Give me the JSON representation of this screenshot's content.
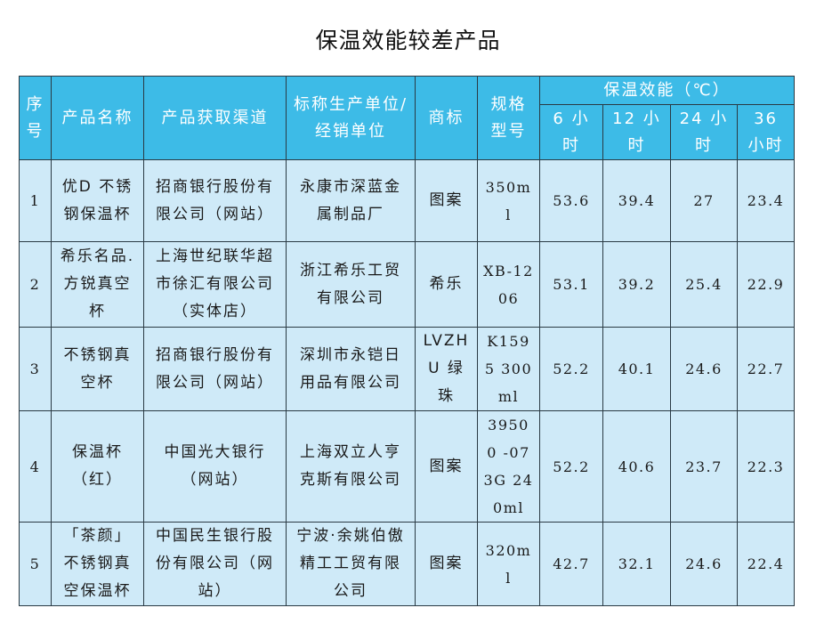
{
  "title": "保温效能较差产品",
  "table": {
    "headers": {
      "seq": "序号",
      "name": "产品名称",
      "channel": "产品获取渠道",
      "unit": "标称生产单位/经销单位",
      "brand": "商标",
      "spec": "规格型号",
      "performance": "保温效能（℃）",
      "h6": "6 小时",
      "h12": "12 小时",
      "h24": "24 小时",
      "h36": "36 小时"
    },
    "rows": [
      {
        "seq": "1",
        "name": "优D 不锈钢保温杯",
        "channel": "招商银行股份有限公司（网站）",
        "unit": "永康市深蓝金属制品厂",
        "brand": "图案",
        "spec": "350ml",
        "h6": "53.6",
        "h12": "39.4",
        "h24": "27",
        "h36": "23.4"
      },
      {
        "seq": "2",
        "name": "希乐名品.方锐真空杯",
        "channel": "上海世纪联华超市徐汇有限公司（实体店）",
        "unit": "浙江希乐工贸有限公司",
        "brand": "希乐",
        "spec": "XB-1206",
        "h6": "53.1",
        "h12": "39.2",
        "h24": "25.4",
        "h36": "22.9"
      },
      {
        "seq": "3",
        "name": "不锈钢真空杯",
        "channel": "招商银行股份有限公司（网站）",
        "unit": "深圳市永铠日用品有限公司",
        "brand": "LVZHU 绿珠",
        "spec": "K1595 300ml",
        "h6": "52.2",
        "h12": "40.1",
        "h24": "24.6",
        "h36": "22.7"
      },
      {
        "seq": "4",
        "name": "保温杯（红）",
        "channel": "中国光大银行（网站）",
        "unit": "上海双立人亨克斯有限公司",
        "brand": "图案",
        "spec": "39500 -073G 240ml",
        "h6": "52.2",
        "h12": "40.6",
        "h24": "23.7",
        "h36": "22.3"
      },
      {
        "seq": "5",
        "name": "「茶颜」不锈钢真空保温杯",
        "channel": "中国民生银行股份有限公司（网站）",
        "unit": "宁波·余姚伯傲精工工贸有限公司",
        "brand": "图案",
        "spec": "320ml",
        "h6": "42.7",
        "h12": "32.1",
        "h24": "24.6",
        "h36": "22.4"
      }
    ]
  }
}
